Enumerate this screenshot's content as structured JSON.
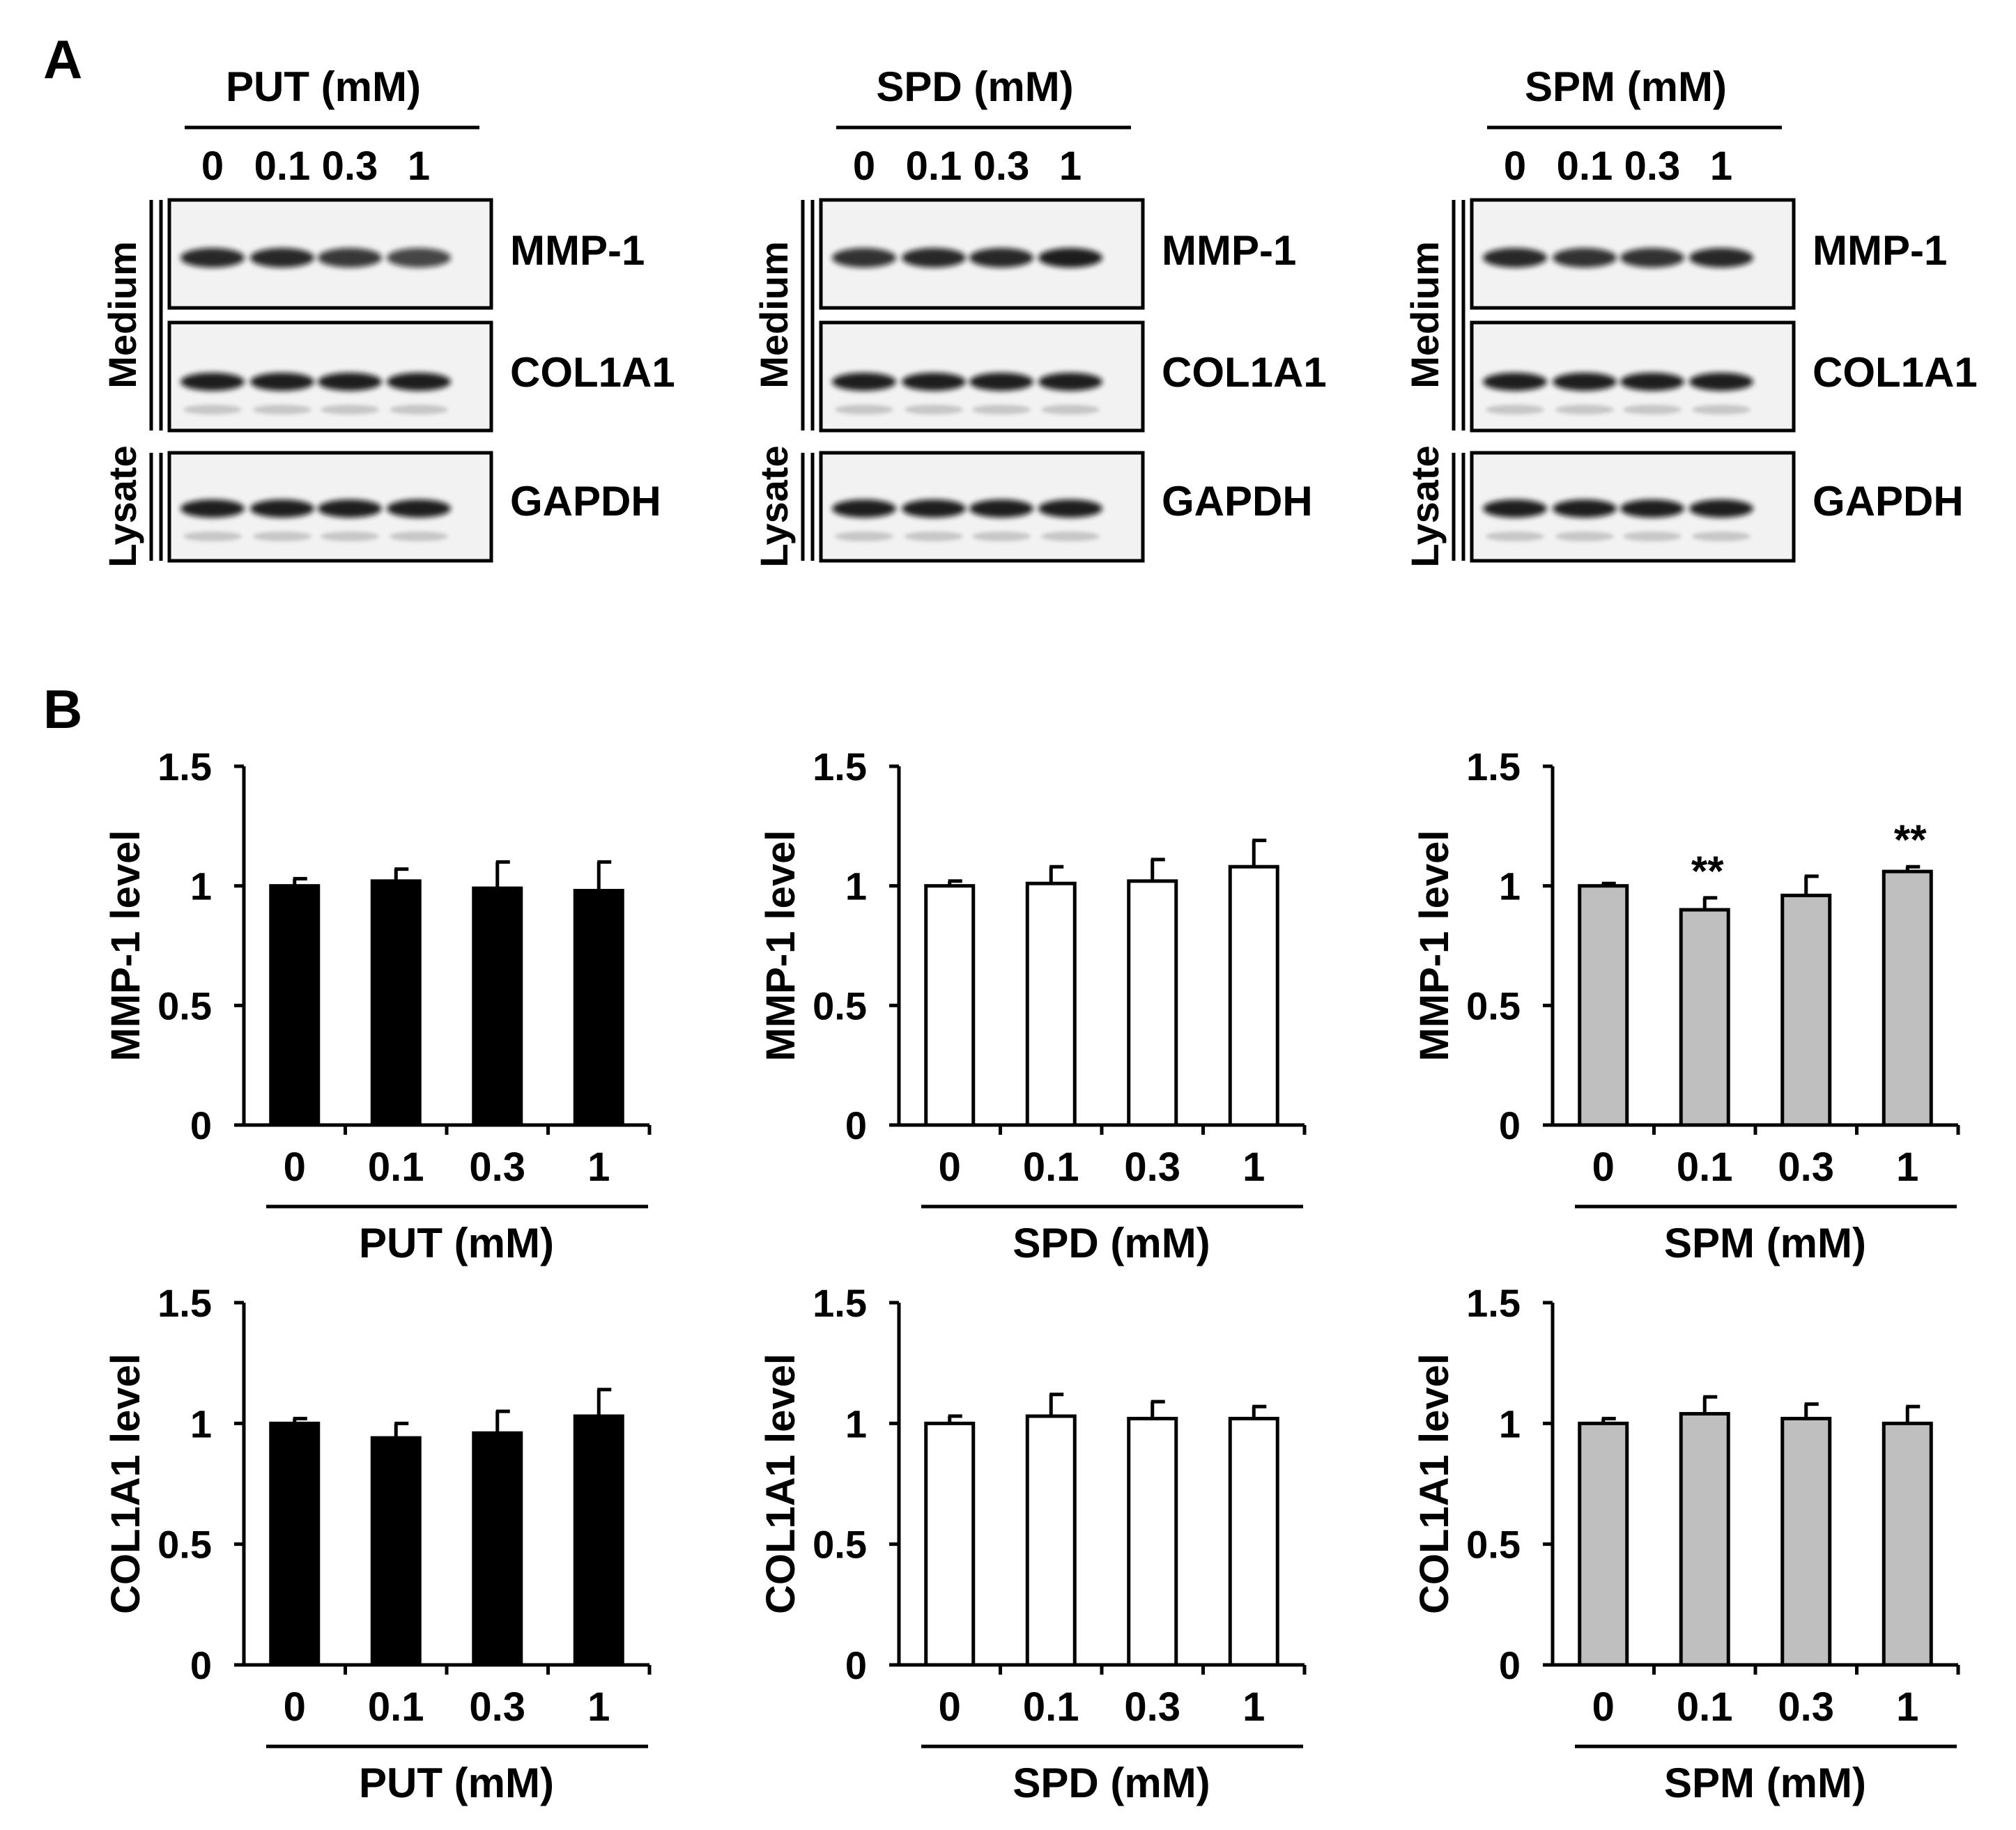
{
  "panels": {
    "a_label": "A",
    "b_label": "B"
  },
  "western_blots": [
    {
      "treatment_label": "PUT (mM)",
      "lanes": [
        "0",
        "0.1",
        "0.3",
        "1"
      ],
      "groups": [
        {
          "label": "Medium"
        },
        {
          "label": "Lysate"
        }
      ],
      "bands": [
        "MMP-1",
        "COL1A1",
        "GAPDH"
      ]
    },
    {
      "treatment_label": "SPD (mM)",
      "lanes": [
        "0",
        "0.1",
        "0.3",
        "1"
      ],
      "groups": [
        {
          "label": "Medium"
        },
        {
          "label": "Lysate"
        }
      ],
      "bands": [
        "MMP-1",
        "COL1A1",
        "GAPDH"
      ]
    },
    {
      "treatment_label": "SPM (mM)",
      "lanes": [
        "0",
        "0.1",
        "0.3",
        "1"
      ],
      "groups": [
        {
          "label": "Medium"
        },
        {
          "label": "Lysate"
        }
      ],
      "bands": [
        "MMP-1",
        "COL1A1",
        "GAPDH"
      ]
    }
  ],
  "colors": {
    "put": "#000000",
    "spd": "#ffffff",
    "spm": "#bfbfbf",
    "axis": "#000000"
  },
  "chart_data": [
    {
      "type": "bar",
      "categories": [
        "0",
        "0.1",
        "0.3",
        "1"
      ],
      "xlabel": "PUT (mM)",
      "ylabel": "MMP-1 level",
      "values": [
        1.0,
        1.02,
        0.99,
        0.98
      ],
      "errors": [
        0.03,
        0.05,
        0.11,
        0.12
      ],
      "annotations": [
        "",
        "",
        "",
        ""
      ],
      "ylim": [
        0,
        1.5
      ],
      "yticks": [
        "0",
        "0.5",
        "1",
        "1.5"
      ],
      "fill": "#000000"
    },
    {
      "type": "bar",
      "categories": [
        "0",
        "0.1",
        "0.3",
        "1"
      ],
      "xlabel": "SPD (mM)",
      "ylabel": "MMP-1 level",
      "values": [
        1.0,
        1.01,
        1.02,
        1.08
      ],
      "errors": [
        0.02,
        0.07,
        0.09,
        0.11
      ],
      "annotations": [
        "",
        "",
        "",
        ""
      ],
      "ylim": [
        0,
        1.5
      ],
      "yticks": [
        "0",
        "0.5",
        "1",
        "1.5"
      ],
      "fill": "#ffffff"
    },
    {
      "type": "bar",
      "categories": [
        "0",
        "0.1",
        "0.3",
        "1"
      ],
      "xlabel": "SPM (mM)",
      "ylabel": "MMP-1 level",
      "values": [
        1.0,
        0.9,
        0.96,
        1.06
      ],
      "errors": [
        0.01,
        0.05,
        0.08,
        0.02
      ],
      "annotations": [
        "",
        "**",
        "",
        "**"
      ],
      "ylim": [
        0,
        1.5
      ],
      "yticks": [
        "0",
        "0.5",
        "1",
        "1.5"
      ],
      "fill": "#bfbfbf"
    },
    {
      "type": "bar",
      "categories": [
        "0",
        "0.1",
        "0.3",
        "1"
      ],
      "xlabel": "PUT (mM)",
      "ylabel": "COL1A1 level",
      "values": [
        1.0,
        0.94,
        0.96,
        1.03
      ],
      "errors": [
        0.02,
        0.06,
        0.09,
        0.11
      ],
      "annotations": [
        "",
        "",
        "",
        ""
      ],
      "ylim": [
        0,
        1.5
      ],
      "yticks": [
        "0",
        "0.5",
        "1",
        "1.5"
      ],
      "fill": "#000000"
    },
    {
      "type": "bar",
      "categories": [
        "0",
        "0.1",
        "0.3",
        "1"
      ],
      "xlabel": "SPD (mM)",
      "ylabel": "COL1A1 level",
      "values": [
        1.0,
        1.03,
        1.02,
        1.02
      ],
      "errors": [
        0.03,
        0.09,
        0.07,
        0.05
      ],
      "annotations": [
        "",
        "",
        "",
        ""
      ],
      "ylim": [
        0,
        1.5
      ],
      "yticks": [
        "0",
        "0.5",
        "1",
        "1.5"
      ],
      "fill": "#ffffff"
    },
    {
      "type": "bar",
      "categories": [
        "0",
        "0.1",
        "0.3",
        "1"
      ],
      "xlabel": "SPM (mM)",
      "ylabel": "COL1A1 level",
      "values": [
        1.0,
        1.04,
        1.02,
        1.0
      ],
      "errors": [
        0.02,
        0.07,
        0.06,
        0.07
      ],
      "annotations": [
        "",
        "",
        "",
        ""
      ],
      "ylim": [
        0,
        1.5
      ],
      "yticks": [
        "0",
        "0.5",
        "1",
        "1.5"
      ],
      "fill": "#bfbfbf"
    }
  ]
}
